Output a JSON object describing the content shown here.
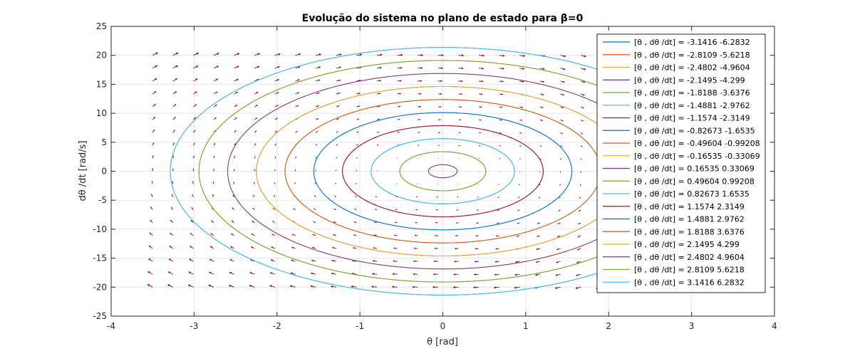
{
  "chart_data": {
    "type": "line",
    "title": "Evolução do sistema no plano de estado para β=0",
    "xlabel": "θ   [rad]",
    "ylabel": "dθ /dt    [rad/s]",
    "xlim": [
      -4,
      4
    ],
    "ylim": [
      -25,
      25
    ],
    "x_ticks": [
      -4,
      -3,
      -2,
      -1,
      0,
      1,
      2,
      3,
      4
    ],
    "y_ticks": [
      -25,
      -20,
      -15,
      -10,
      -5,
      0,
      5,
      10,
      15,
      20,
      25
    ],
    "x_tick_labels": [
      "-4",
      "-3",
      "-2",
      "-1",
      "0",
      "1",
      "2",
      "3",
      "4"
    ],
    "y_tick_labels": [
      "-25",
      "-20",
      "-15",
      "-10",
      "-5",
      "0",
      "5",
      "10",
      "15",
      "20",
      "25"
    ],
    "grid": true,
    "legend_position": "top-right",
    "omega": 6.5,
    "quiver": {
      "color": "#8b0a2a",
      "theta_range": [
        -3.5,
        3.14
      ],
      "omega_range": [
        -20,
        20
      ],
      "n_theta": 28,
      "n_omega": 19,
      "scale": 0.025
    },
    "series": [
      {
        "name": "[θ , dθ /dt] = -3.1416     -6.2832",
        "theta0": -3.1416,
        "omega0": -6.2832,
        "color": "#0072bd"
      },
      {
        "name": "[θ , dθ /dt] = -2.8109     -5.6218",
        "theta0": -2.8109,
        "omega0": -5.6218,
        "color": "#d95319"
      },
      {
        "name": "[θ , dθ /dt] = -2.4802     -4.9604",
        "theta0": -2.4802,
        "omega0": -4.9604,
        "color": "#edb120"
      },
      {
        "name": "[θ , dθ /dt] = -2.1495      -4.299",
        "theta0": -2.1495,
        "omega0": -4.299,
        "color": "#7e2f8e"
      },
      {
        "name": "[θ , dθ /dt] = -1.8188     -3.6376",
        "theta0": -1.8188,
        "omega0": -3.6376,
        "color": "#77ac30"
      },
      {
        "name": "[θ , dθ /dt] = -1.4881     -2.9762",
        "theta0": -1.4881,
        "omega0": -2.9762,
        "color": "#4dbeee"
      },
      {
        "name": "[θ , dθ /dt] = -1.1574     -2.3149",
        "theta0": -1.1574,
        "omega0": -2.3149,
        "color": "#a2142f"
      },
      {
        "name": "[θ , dθ /dt] = -0.82673     -1.6535",
        "theta0": -0.82673,
        "omega0": -1.6535,
        "color": "#0072bd"
      },
      {
        "name": "[θ , dθ /dt] = -0.49604    -0.99208",
        "theta0": -0.49604,
        "omega0": -0.99208,
        "color": "#d95319"
      },
      {
        "name": "[θ , dθ /dt] = -0.16535    -0.33069",
        "theta0": -0.16535,
        "omega0": -0.33069,
        "color": "#edb120"
      },
      {
        "name": "[θ , dθ /dt] = 0.16535     0.33069",
        "theta0": 0.16535,
        "omega0": 0.33069,
        "color": "#7e2f8e"
      },
      {
        "name": "[θ , dθ /dt] = 0.49604     0.99208",
        "theta0": 0.49604,
        "omega0": 0.99208,
        "color": "#77ac30"
      },
      {
        "name": "[θ , dθ /dt] = 0.82673      1.6535",
        "theta0": 0.82673,
        "omega0": 1.6535,
        "color": "#4dbeee"
      },
      {
        "name": "[θ , dθ /dt] = 1.1574      2.3149",
        "theta0": 1.1574,
        "omega0": 2.3149,
        "color": "#a2142f"
      },
      {
        "name": "[θ , dθ /dt] = 1.4881      2.9762",
        "theta0": 1.4881,
        "omega0": 2.9762,
        "color": "#0072bd"
      },
      {
        "name": "[θ , dθ /dt] = 1.8188      3.6376",
        "theta0": 1.8188,
        "omega0": 3.6376,
        "color": "#d95319"
      },
      {
        "name": "[θ , dθ /dt] = 2.1495       4.299",
        "theta0": 2.1495,
        "omega0": 4.299,
        "color": "#edb120"
      },
      {
        "name": "[θ , dθ /dt] = 2.4802      4.9604",
        "theta0": 2.4802,
        "omega0": 4.9604,
        "color": "#7e2f8e"
      },
      {
        "name": "[θ , dθ /dt] = 2.8109      5.6218",
        "theta0": 2.8109,
        "omega0": 5.6218,
        "color": "#77ac30"
      },
      {
        "name": "[θ , dθ /dt] = 3.1416      6.2832",
        "theta0": 3.1416,
        "omega0": 6.2832,
        "color": "#4dbeee"
      }
    ]
  }
}
